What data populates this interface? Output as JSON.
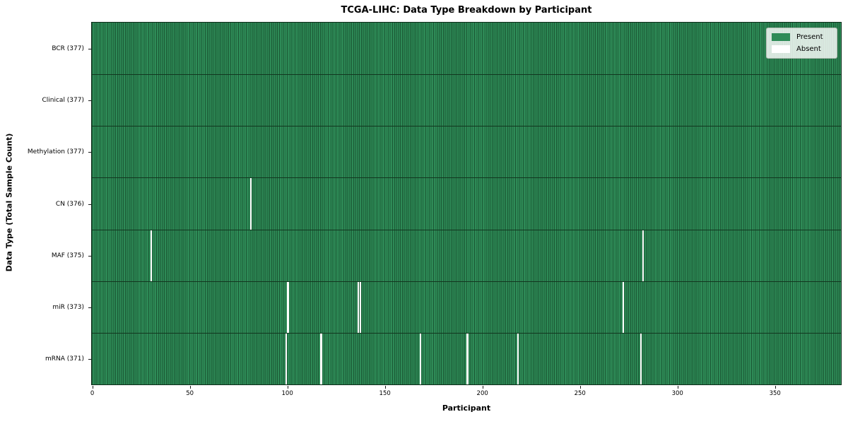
{
  "title": "TCGA-LIHC: Data Type Breakdown by Participant",
  "legend": {
    "present_label": "Present",
    "absent_label": "Absent"
  },
  "colors": {
    "present": "#2e8b57",
    "present_edge": "#1a5733",
    "absent": "#ffffff",
    "row_border": "#12361f",
    "spine": "#0d2d1a"
  },
  "chart_data": {
    "type": "heatmap",
    "title": "TCGA-LIHC: Data Type Breakdown by Participant",
    "xlabel": "Participant",
    "ylabel": "Data Type (Total Sample Count)",
    "xlim": [
      0,
      384
    ],
    "x_ticks": [
      0,
      50,
      100,
      150,
      200,
      250,
      300,
      350
    ],
    "n_participants": 377,
    "grid": false,
    "legend_position": "upper right",
    "legend_entries": [
      {
        "label": "Present",
        "color": "#2e8b57"
      },
      {
        "label": "Absent",
        "color": "#ffffff"
      }
    ],
    "rows": [
      {
        "label": "BCR (377)",
        "data_type": "BCR",
        "present_count": 377,
        "absent_count": 0,
        "absent_at": []
      },
      {
        "label": "Clinical (377)",
        "data_type": "Clinical",
        "present_count": 377,
        "absent_count": 0,
        "absent_at": []
      },
      {
        "label": "Methylation (377)",
        "data_type": "Methylation",
        "present_count": 377,
        "absent_count": 0,
        "absent_at": []
      },
      {
        "label": "CN (376)",
        "data_type": "CN",
        "present_count": 376,
        "absent_count": 1,
        "absent_at": [
          81
        ]
      },
      {
        "label": "MAF (375)",
        "data_type": "MAF",
        "present_count": 375,
        "absent_count": 2,
        "absent_at": [
          30,
          282
        ]
      },
      {
        "label": "miR (373)",
        "data_type": "miR",
        "present_count": 373,
        "absent_count": 4,
        "absent_at": [
          100,
          136,
          137,
          272
        ]
      },
      {
        "label": "mRNA (371)",
        "data_type": "mRNA",
        "present_count": 371,
        "absent_count": 6,
        "absent_at": [
          99,
          117,
          168,
          192,
          218,
          281
        ]
      }
    ]
  }
}
